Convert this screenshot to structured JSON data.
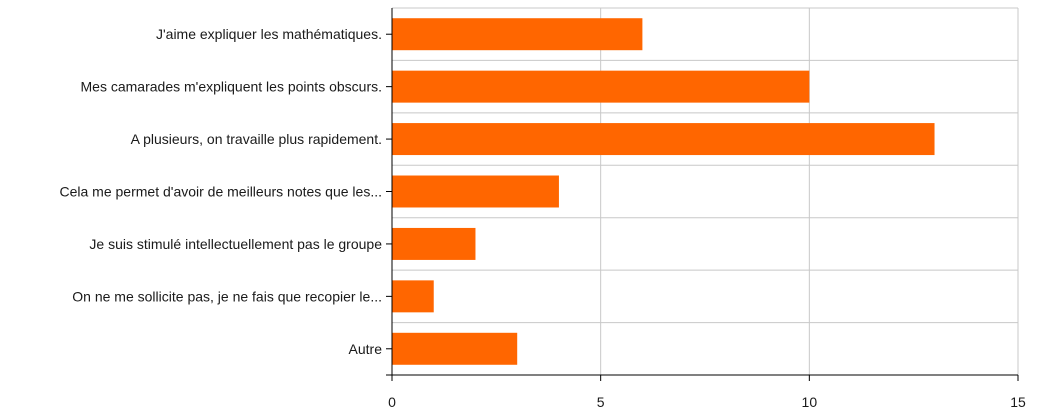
{
  "chart_data": {
    "type": "bar",
    "orientation": "horizontal",
    "categories": [
      "J'aime expliquer les mathématiques.",
      "Mes camarades m'expliquent les points obscurs.",
      "A plusieurs, on travaille plus rapidement.",
      "Cela me permet d'avoir de meilleurs notes que les...",
      "Je suis stimulé intellectuellement pas le groupe",
      "On ne me sollicite pas, je ne fais que recopier le...",
      "Autre"
    ],
    "values": [
      6,
      10,
      13,
      4,
      2,
      1,
      3
    ],
    "xlim": [
      0,
      15
    ],
    "xticks": [
      "0",
      "5",
      "10",
      "15"
    ],
    "grid": true,
    "bar_color": "#ff6600",
    "grid_color": "#c8c8c8",
    "axis_color": "#000000"
  }
}
